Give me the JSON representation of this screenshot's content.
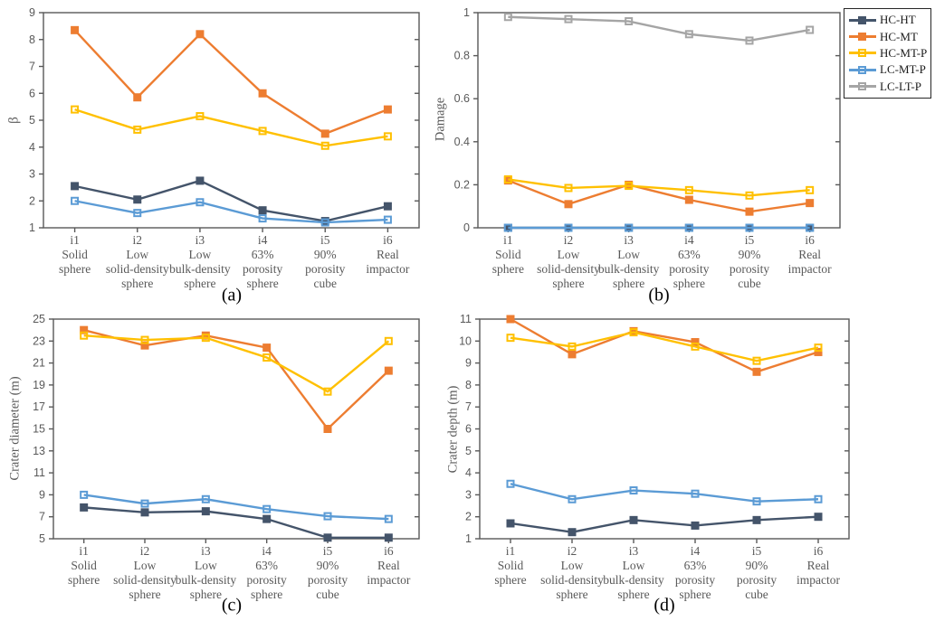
{
  "figure": {
    "background": "#ffffff",
    "captions": {
      "a": "(a)",
      "b": "(b)",
      "c": "(c)",
      "d": "(d)"
    }
  },
  "axis_style": {
    "line_color": "#595959",
    "tick_label_color": "#595959"
  },
  "legend": {
    "position": "top-right",
    "border_color": "#262626",
    "items": [
      {
        "label": "HC-HT",
        "color": "#44546A",
        "marker": "filled-square"
      },
      {
        "label": "HC-MT",
        "color": "#ED7D31",
        "marker": "filled-square"
      },
      {
        "label": "HC-MT-P",
        "color": "#FFC000",
        "marker": "open-square"
      },
      {
        "label": "LC-MT-P",
        "color": "#5B9BD5",
        "marker": "open-square"
      },
      {
        "label": "LC-LT-P",
        "color": "#A5A5A5",
        "marker": "open-square"
      }
    ]
  },
  "categories_lines": [
    [
      "i1",
      "Solid",
      "sphere"
    ],
    [
      "i2",
      "Low",
      "solid-density",
      "sphere"
    ],
    [
      "i3",
      "Low",
      "bulk-density",
      "sphere"
    ],
    [
      "i4",
      "63%",
      "porosity",
      "sphere"
    ],
    [
      "i5",
      "90%",
      "porosity",
      "cube"
    ],
    [
      "i6",
      "Real",
      "impactor"
    ]
  ],
  "chart_data": [
    {
      "panel": "a",
      "type": "line",
      "title": "(a)",
      "ylabel": "β",
      "ylim": [
        1,
        9
      ],
      "ytick_step": 1,
      "grid": false,
      "legend_position": "figure-top-right",
      "categories": [
        "i1 Solid sphere",
        "i2 Low solid-density sphere",
        "i3 Low bulk-density sphere",
        "i4 63% porosity sphere",
        "i5 90% porosity cube",
        "i6 Real impactor"
      ],
      "series": [
        {
          "name": "HC-HT",
          "color": "#44546A",
          "marker": "filled-square",
          "values": [
            2.55,
            2.05,
            2.75,
            1.65,
            1.25,
            1.8
          ]
        },
        {
          "name": "HC-MT",
          "color": "#ED7D31",
          "marker": "filled-square",
          "values": [
            8.35,
            5.85,
            8.2,
            6.0,
            4.5,
            5.4
          ]
        },
        {
          "name": "HC-MT-P",
          "color": "#FFC000",
          "marker": "open-square",
          "values": [
            5.4,
            4.65,
            5.15,
            4.6,
            4.05,
            4.4
          ]
        },
        {
          "name": "LC-MT-P",
          "color": "#5B9BD5",
          "marker": "open-square",
          "values": [
            2.0,
            1.55,
            1.95,
            1.35,
            1.2,
            1.3
          ]
        }
      ]
    },
    {
      "panel": "b",
      "type": "line",
      "title": "(b)",
      "ylabel": "Damage",
      "ylim": [
        0,
        1
      ],
      "ytick_step": 0.2,
      "grid": false,
      "categories": [
        "i1 Solid sphere",
        "i2 Low solid-density sphere",
        "i3 Low bulk-density sphere",
        "i4 63% porosity sphere",
        "i5 90% porosity cube",
        "i6 Real impactor"
      ],
      "series": [
        {
          "name": "HC-HT",
          "color": "#44546A",
          "marker": "filled-square",
          "values": [
            0,
            0,
            0,
            0,
            0,
            0
          ]
        },
        {
          "name": "HC-MT",
          "color": "#ED7D31",
          "marker": "filled-square",
          "values": [
            0.22,
            0.11,
            0.2,
            0.13,
            0.075,
            0.115
          ]
        },
        {
          "name": "HC-MT-P",
          "color": "#FFC000",
          "marker": "open-square",
          "values": [
            0.225,
            0.185,
            0.195,
            0.175,
            0.15,
            0.175
          ]
        },
        {
          "name": "LC-MT-P",
          "color": "#5B9BD5",
          "marker": "open-square",
          "values": [
            0,
            0,
            0,
            0,
            0,
            0
          ]
        },
        {
          "name": "LC-LT-P",
          "color": "#A5A5A5",
          "marker": "open-square",
          "values": [
            0.98,
            0.97,
            0.96,
            0.9,
            0.87,
            0.92
          ]
        }
      ]
    },
    {
      "panel": "c",
      "type": "line",
      "title": "(c)",
      "ylabel": "Crater diameter (m)",
      "ylim": [
        5,
        25
      ],
      "ytick_step": 2,
      "grid": false,
      "categories": [
        "i1 Solid sphere",
        "i2 Low solid-density sphere",
        "i3 Low bulk-density sphere",
        "i4 63% porosity sphere",
        "i5 90% porosity cube",
        "i6 Real impactor"
      ],
      "series": [
        {
          "name": "HC-HT",
          "color": "#44546A",
          "marker": "filled-square",
          "values": [
            7.85,
            7.4,
            7.5,
            6.8,
            5.1,
            5.1
          ]
        },
        {
          "name": "HC-MT",
          "color": "#ED7D31",
          "marker": "filled-square",
          "values": [
            24.0,
            22.6,
            23.5,
            22.4,
            15.0,
            20.3
          ]
        },
        {
          "name": "HC-MT-P",
          "color": "#FFC000",
          "marker": "open-square",
          "values": [
            23.5,
            23.1,
            23.3,
            21.5,
            18.4,
            23.0
          ]
        },
        {
          "name": "LC-MT-P",
          "color": "#5B9BD5",
          "marker": "open-square",
          "values": [
            9.0,
            8.2,
            8.6,
            7.7,
            7.05,
            6.8
          ]
        }
      ]
    },
    {
      "panel": "d",
      "type": "line",
      "title": "(d)",
      "ylabel": "Crater depth (m)",
      "ylim": [
        1,
        11
      ],
      "ytick_step": 1,
      "grid": false,
      "categories": [
        "i1 Solid sphere",
        "i2 Low solid-density sphere",
        "i3 Low bulk-density sphere",
        "i4 63% porosity sphere",
        "i5 90% porosity cube",
        "i6 Real impactor"
      ],
      "series": [
        {
          "name": "HC-HT",
          "color": "#44546A",
          "marker": "filled-square",
          "values": [
            1.7,
            1.3,
            1.85,
            1.6,
            1.85,
            2.0
          ]
        },
        {
          "name": "HC-MT",
          "color": "#ED7D31",
          "marker": "filled-square",
          "values": [
            11.0,
            9.4,
            10.45,
            9.95,
            8.6,
            9.5
          ]
        },
        {
          "name": "HC-MT-P",
          "color": "#FFC000",
          "marker": "open-square",
          "values": [
            10.15,
            9.75,
            10.4,
            9.75,
            9.1,
            9.7
          ]
        },
        {
          "name": "LC-MT-P",
          "color": "#5B9BD5",
          "marker": "open-square",
          "values": [
            3.5,
            2.8,
            3.2,
            3.05,
            2.7,
            2.8
          ]
        }
      ]
    }
  ]
}
